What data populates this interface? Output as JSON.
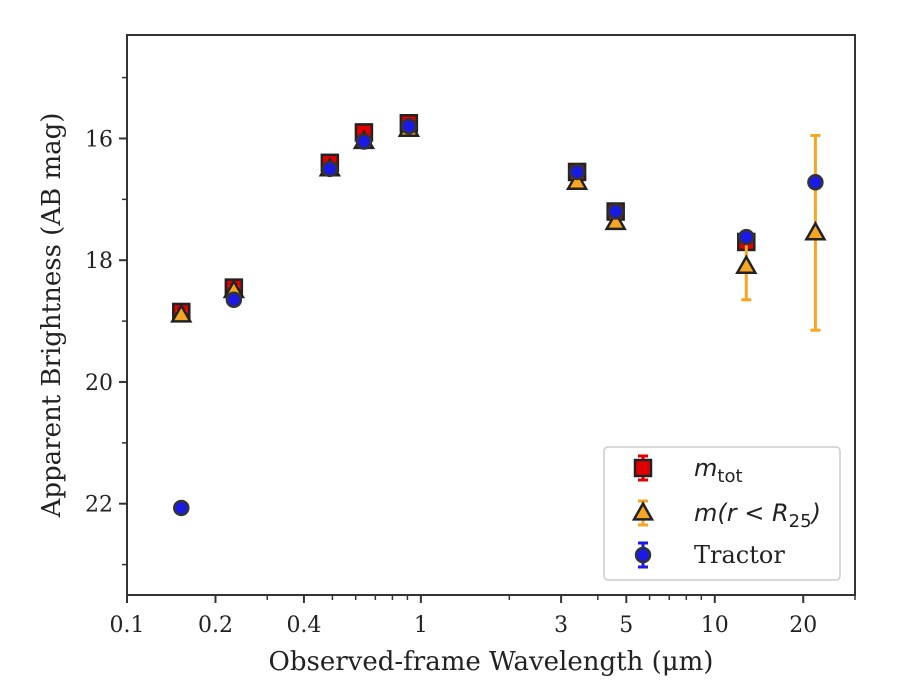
{
  "chart_data": {
    "type": "scatter",
    "xlabel": "Observed-frame Wavelength (μm)",
    "ylabel": "Apparent Brightness (AB mag)",
    "x_scale": "log",
    "y_inverted": true,
    "xlim": [
      0.1,
      30
    ],
    "ylim": [
      23.5,
      14.3
    ],
    "x_ticks": [
      0.1,
      0.2,
      0.4,
      1,
      3,
      5,
      10,
      20
    ],
    "x_tick_labels": [
      "0.1",
      "0.2",
      "0.4",
      "1",
      "3",
      "5",
      "10",
      "20"
    ],
    "y_ticks": [
      16,
      18,
      20,
      22
    ],
    "y_tick_labels": [
      "16",
      "18",
      "20",
      "22"
    ],
    "legend_placement": "lower-right",
    "series": [
      {
        "name": "m_tot",
        "legend_label": "m",
        "legend_sub": "tot",
        "marker": "square",
        "color": "#e00000",
        "edge_color": "#222222",
        "x": [
          0.153,
          0.231,
          0.49,
          0.64,
          0.91,
          3.4,
          4.6,
          12.8
        ],
        "y": [
          18.85,
          18.45,
          16.4,
          15.9,
          15.75,
          16.55,
          17.2,
          17.7
        ],
        "yerr": [
          0.1,
          0.1,
          0.05,
          0.05,
          0.05,
          0.05,
          0.05,
          0.12
        ]
      },
      {
        "name": "m(r < R_25)",
        "legend_label": "m(r < R",
        "legend_sub": "25",
        "legend_suffix": ")",
        "marker": "triangle",
        "color": "#f5a623",
        "edge_color": "#222222",
        "x": [
          0.153,
          0.231,
          0.49,
          0.64,
          0.91,
          3.4,
          4.6,
          12.8,
          22.0
        ],
        "y": [
          18.9,
          18.5,
          16.5,
          16.05,
          15.85,
          16.72,
          17.38,
          18.1,
          17.55
        ],
        "yerr": [
          0.05,
          0.05,
          0.05,
          0.05,
          0.05,
          0.05,
          0.05,
          0.55,
          1.6
        ]
      },
      {
        "name": "Tractor",
        "legend_label": "Tractor",
        "marker": "circle",
        "color": "#1a1ae6",
        "edge_color": "#333333",
        "x": [
          0.153,
          0.231,
          0.49,
          0.64,
          0.91,
          3.4,
          4.6,
          12.8,
          22.0
        ],
        "y": [
          22.07,
          18.65,
          16.5,
          16.05,
          15.8,
          16.55,
          17.2,
          17.62,
          16.72
        ],
        "yerr": [
          0.05,
          0.05,
          0.05,
          0.05,
          0.05,
          0.05,
          0.05,
          0.05,
          0.05
        ]
      }
    ]
  }
}
